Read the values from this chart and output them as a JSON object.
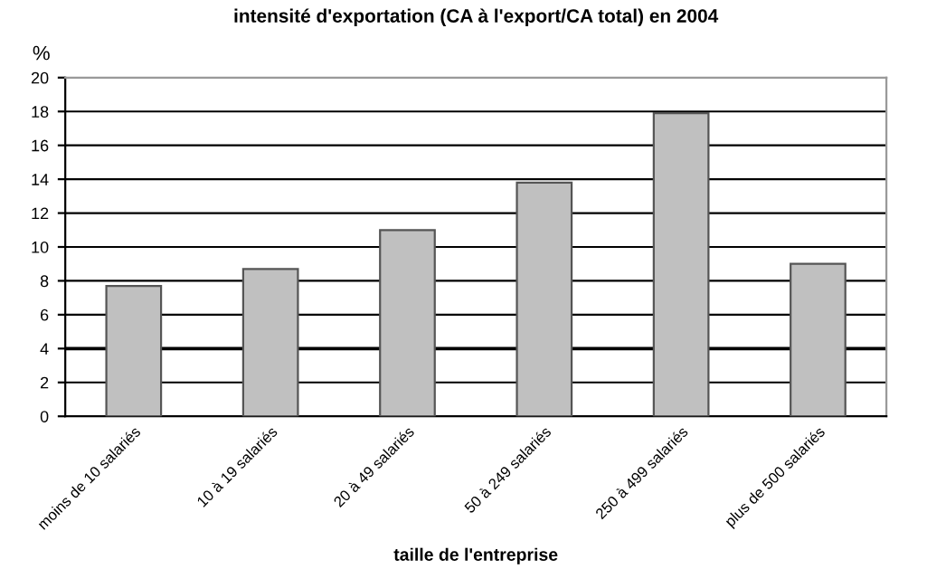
{
  "chart_data": {
    "type": "bar",
    "title": "intensité d'exportation (CA à l'export/CA total) en 2004",
    "ylabel": "%",
    "xlabel": "taille de l'entreprise",
    "categories": [
      "moins de 10 salariés",
      "10 à 19 salariés",
      "20 à 49 salariés",
      "50 à 249 salariés",
      "250 à 499 salariés",
      "plus de 500 salariés"
    ],
    "values": [
      7.7,
      8.7,
      11.0,
      13.8,
      17.9,
      9.0
    ],
    "color": "#c0c0c0",
    "ylim": [
      0,
      20
    ],
    "yticks": [
      0,
      2,
      4,
      6,
      8,
      10,
      12,
      14,
      16,
      18,
      20
    ],
    "grid": "y",
    "ref_lines": [
      {
        "axis": "y",
        "value": 4,
        "label": null,
        "color": "#000000"
      }
    ]
  }
}
